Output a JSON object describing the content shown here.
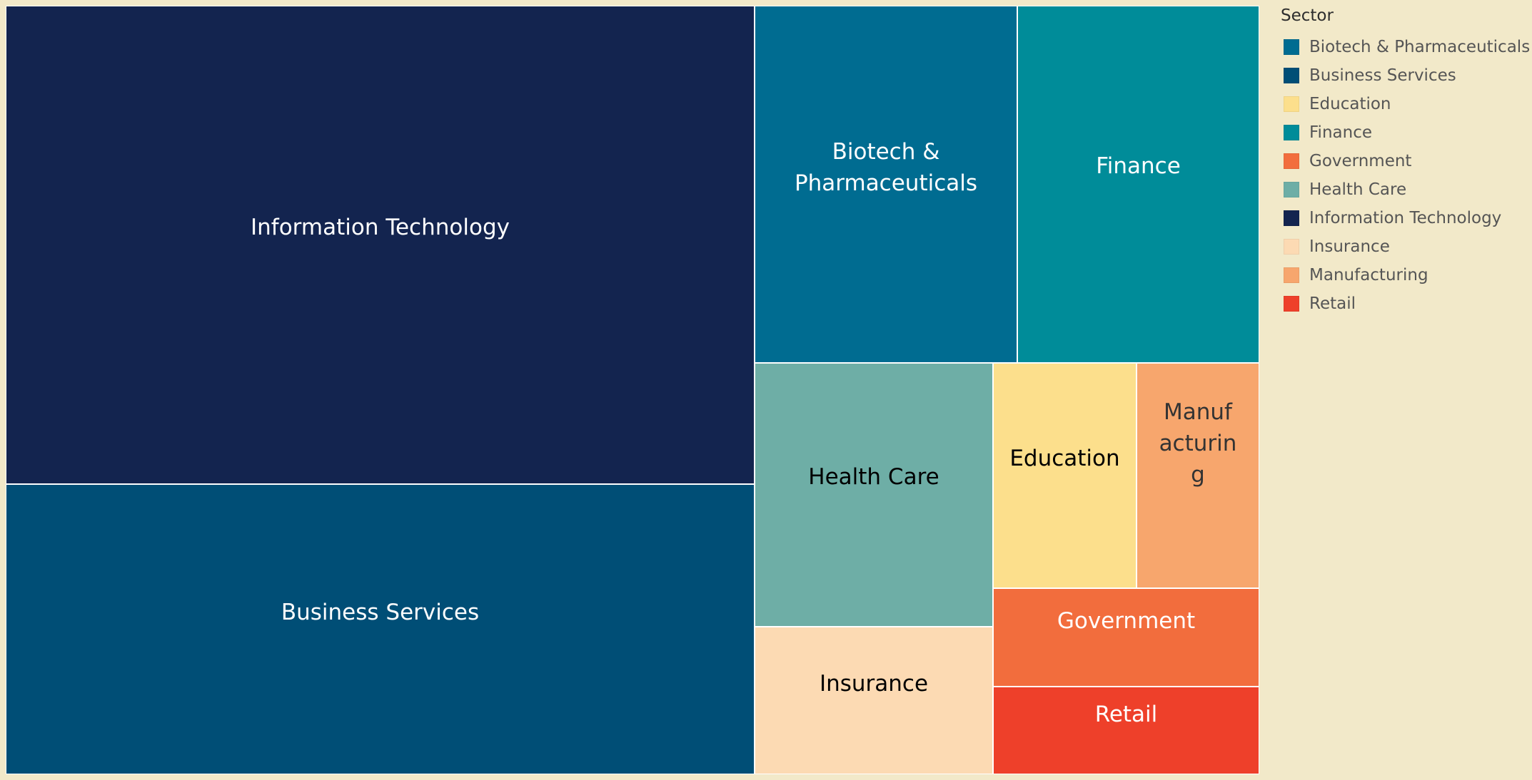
{
  "chart_data": {
    "type": "treemap",
    "legend_title": "Sector",
    "legend_position": "right",
    "categories": [
      "Biotech & Pharmaceuticals",
      "Business Services",
      "Education",
      "Finance",
      "Government",
      "Health Care",
      "Information Technology",
      "Insurance",
      "Manufacturing",
      "Retail"
    ],
    "colors": {
      "Biotech & Pharmaceuticals": "#006c91",
      "Business Services": "#004e76",
      "Education": "#fcdf8c",
      "Finance": "#008c99",
      "Government": "#f26d3d",
      "Health Care": "#6eaea6",
      "Information Technology": "#13244f",
      "Insurance": "#fcdab3",
      "Manufacturing": "#f7a66d",
      "Retail": "#ee402a"
    },
    "label_colors": {
      "Biotech & Pharmaceuticals": "#ffffff",
      "Business Services": "#ffffff",
      "Education": "#000000",
      "Finance": "#ffffff",
      "Government": "#ffffff",
      "Health Care": "#000000",
      "Information Technology": "#ffffff",
      "Insurance": "#000000",
      "Manufacturing": "#333333",
      "Retail": "#ffffff"
    },
    "tile_labels": {
      "Biotech & Pharmaceuticals": [
        "Biotech &",
        "Pharmaceuticals"
      ],
      "Business Services": [
        "Business Services"
      ],
      "Education": [
        "Education"
      ],
      "Finance": [
        "Finance"
      ],
      "Government": [
        "Government"
      ],
      "Health Care": [
        "Health Care"
      ],
      "Information Technology": [
        "Information Technology"
      ],
      "Insurance": [
        "Insurance"
      ],
      "Manufacturing": [
        "Manuf",
        "acturin",
        "g"
      ],
      "Retail": [
        "Retail"
      ]
    },
    "values": {
      "Information Technology": 39.8,
      "Business Services": 23.9,
      "Biotech & Pharmaceuticals": 10.4,
      "Finance": 9.5,
      "Health Care": 7.0,
      "Education": 3.6,
      "Manufacturing": 3.1,
      "Insurance": 3.8,
      "Government": 2.3,
      "Retail": 2.0
    }
  }
}
